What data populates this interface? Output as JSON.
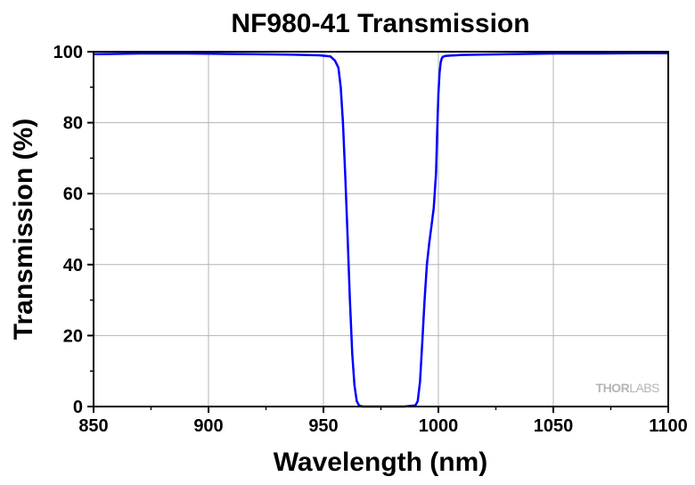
{
  "chart_data": {
    "type": "line",
    "title": "NF980-41 Transmission",
    "xlabel": "Wavelength (nm)",
    "ylabel": "Transmission (%)",
    "xlim": [
      850,
      1100
    ],
    "ylim": [
      0,
      100
    ],
    "x_ticks": [
      850,
      900,
      950,
      1000,
      1050,
      1100
    ],
    "y_ticks": [
      0,
      20,
      40,
      60,
      80,
      100
    ],
    "grid": true,
    "line_color": "#0000ff",
    "series": [
      {
        "x": [
          850,
          870,
          890,
          905,
          920,
          935,
          948,
          953,
          955,
          956.5,
          957.5,
          958.5,
          959.5,
          960.5,
          961.5,
          962.5,
          963.5,
          964.5,
          965.5,
          967,
          970,
          975,
          980,
          985,
          990,
          991,
          992,
          993,
          994,
          995,
          996,
          997,
          998,
          999,
          999.5,
          1000,
          1000.5,
          1001,
          1001.5,
          1002,
          1003,
          1005,
          1010,
          1030,
          1050,
          1070,
          1090,
          1100
        ],
        "y": [
          99.3,
          99.5,
          99.5,
          99.4,
          99.3,
          99.2,
          99.0,
          98.7,
          97.5,
          95.5,
          90,
          80,
          65,
          48,
          30,
          15,
          6,
          1.5,
          0.3,
          0,
          0,
          0,
          0,
          0,
          0.3,
          1.5,
          7,
          18,
          30,
          40,
          46,
          51,
          56,
          66,
          78,
          88,
          94,
          97,
          98.2,
          98.6,
          98.8,
          98.9,
          99.1,
          99.3,
          99.5,
          99.5,
          99.6,
          99.6
        ]
      }
    ]
  },
  "watermark": {
    "bold": "THOR",
    "light": "LABS"
  }
}
